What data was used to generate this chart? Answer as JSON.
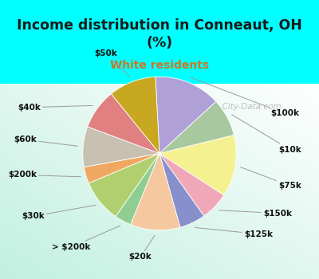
{
  "title": "Income distribution in Conneaut, OH\n(%)",
  "subtitle": "White residents",
  "title_color": "#1a1a1a",
  "subtitle_color": "#cc7722",
  "labels": [
    "$100k",
    "$10k",
    "$75k",
    "$150k",
    "$125k",
    "$20k",
    "> $200k",
    "$30k",
    "$200k",
    "$60k",
    "$40k",
    "$50k"
  ],
  "values": [
    14.0,
    8.0,
    13.0,
    6.0,
    5.5,
    10.5,
    3.5,
    9.0,
    3.5,
    8.5,
    8.5,
    10.0
  ],
  "colors": [
    "#b0a0d8",
    "#a8c8a0",
    "#f5f090",
    "#f0a8b8",
    "#8890cc",
    "#f5c8a0",
    "#8fce90",
    "#b0d070",
    "#f0a860",
    "#c8c0b0",
    "#e08080",
    "#c8a820"
  ],
  "watermark": "  City-Data.com",
  "fig_bg": "#00ffff",
  "chart_bg_colors": [
    "#c5eada",
    "#e8f5ec",
    "#f0faf4"
  ],
  "startangle": 93
}
